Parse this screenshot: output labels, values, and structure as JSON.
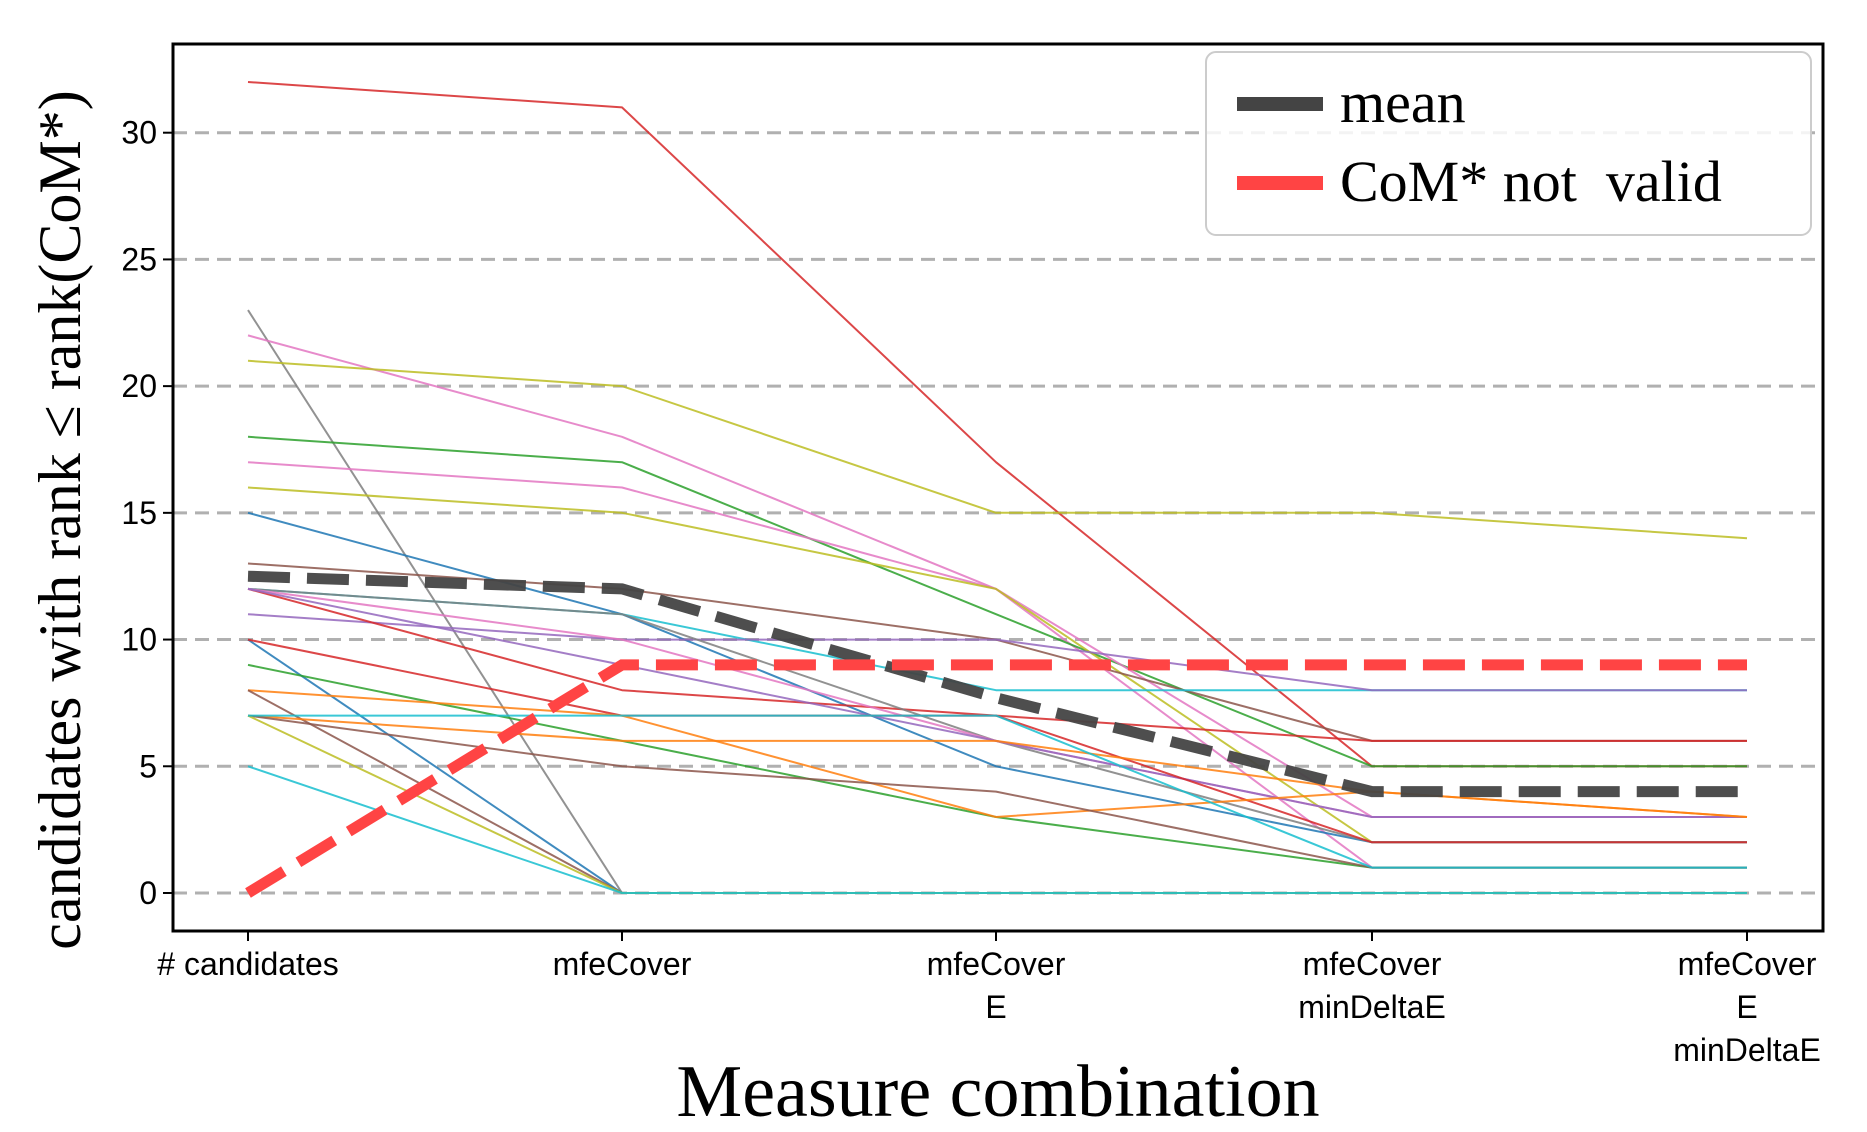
{
  "chart_data": {
    "type": "line",
    "title": "",
    "xlabel": "Measure combination",
    "ylabel": "candidates with rank ≤ rank(CoM*)",
    "categories": [
      [
        "# candidates"
      ],
      [
        "mfeCover"
      ],
      [
        "mfeCover",
        "E"
      ],
      [
        "mfeCover",
        "minDeltaE"
      ],
      [
        "mfeCover",
        "E",
        "minDeltaE"
      ]
    ],
    "yticks": [
      "0",
      "5",
      "10",
      "15",
      "20",
      "25",
      "30"
    ],
    "ylim": [
      -1.5,
      33.5
    ],
    "grid": "horizontal dashed",
    "legend": {
      "position": "top-right",
      "entries": [
        {
          "label": "mean",
          "color": "#444444"
        },
        {
          "label": "CoM* not  valid",
          "color": "#ff4444"
        }
      ]
    },
    "series": [
      {
        "color": "#d62728",
        "values": [
          32,
          31,
          17,
          5,
          5
        ]
      },
      {
        "color": "#7f7f7f",
        "values": [
          23,
          0,
          0,
          0,
          0
        ]
      },
      {
        "color": "#e377c2",
        "values": [
          22,
          18,
          12,
          1,
          1
        ]
      },
      {
        "color": "#bcbd22",
        "values": [
          21,
          20,
          15,
          15,
          14
        ]
      },
      {
        "color": "#2ca02c",
        "values": [
          18,
          17,
          11,
          5,
          5
        ]
      },
      {
        "color": "#e377c2",
        "values": [
          17,
          16,
          12,
          3,
          3
        ]
      },
      {
        "color": "#bcbd22",
        "values": [
          16,
          15,
          12,
          2,
          2
        ]
      },
      {
        "color": "#1f77b4",
        "values": [
          15,
          11,
          5,
          2,
          2
        ]
      },
      {
        "color": "#8c564b",
        "values": [
          13,
          12,
          10,
          6,
          6
        ]
      },
      {
        "color": "#17becf",
        "values": [
          12,
          11,
          8,
          8,
          8
        ]
      },
      {
        "color": "#9467bd",
        "values": [
          11,
          10,
          10,
          8,
          8
        ]
      },
      {
        "color": "#d62728",
        "values": [
          12,
          8,
          7,
          6,
          6
        ]
      },
      {
        "color": "#7f7f7f",
        "values": [
          12,
          11,
          6,
          2,
          2
        ]
      },
      {
        "color": "#e377c2",
        "values": [
          12,
          10,
          6,
          3,
          3
        ]
      },
      {
        "color": "#9467bd",
        "values": [
          12,
          9,
          6,
          3,
          3
        ]
      },
      {
        "color": "#1f77b4",
        "values": [
          10,
          0,
          0,
          0,
          0
        ]
      },
      {
        "color": "#d62728",
        "values": [
          10,
          7,
          7,
          2,
          2
        ]
      },
      {
        "color": "#2ca02c",
        "values": [
          9,
          6,
          3,
          1,
          1
        ]
      },
      {
        "color": "#ff7f0e",
        "values": [
          8,
          7,
          3,
          4,
          3
        ]
      },
      {
        "color": "#8c564b",
        "values": [
          8,
          0,
          0,
          0,
          0
        ]
      },
      {
        "color": "#ff7f0e",
        "values": [
          7,
          6,
          6,
          4,
          3
        ]
      },
      {
        "color": "#8c564b",
        "values": [
          7,
          5,
          4,
          1,
          1
        ]
      },
      {
        "color": "#bcbd22",
        "values": [
          7,
          0,
          0,
          0,
          0
        ]
      },
      {
        "color": "#17becf",
        "values": [
          7,
          7,
          7,
          1,
          1
        ]
      },
      {
        "color": "#17becf",
        "values": [
          5,
          0,
          0,
          0,
          0
        ]
      }
    ],
    "mean": {
      "name": "mean",
      "color": "#444444",
      "values": [
        12.5,
        12,
        7.7,
        4,
        4
      ]
    },
    "not_valid": {
      "name": "CoM* not  valid",
      "color": "#ff4444",
      "values": [
        0,
        9,
        9,
        9,
        9
      ]
    }
  }
}
